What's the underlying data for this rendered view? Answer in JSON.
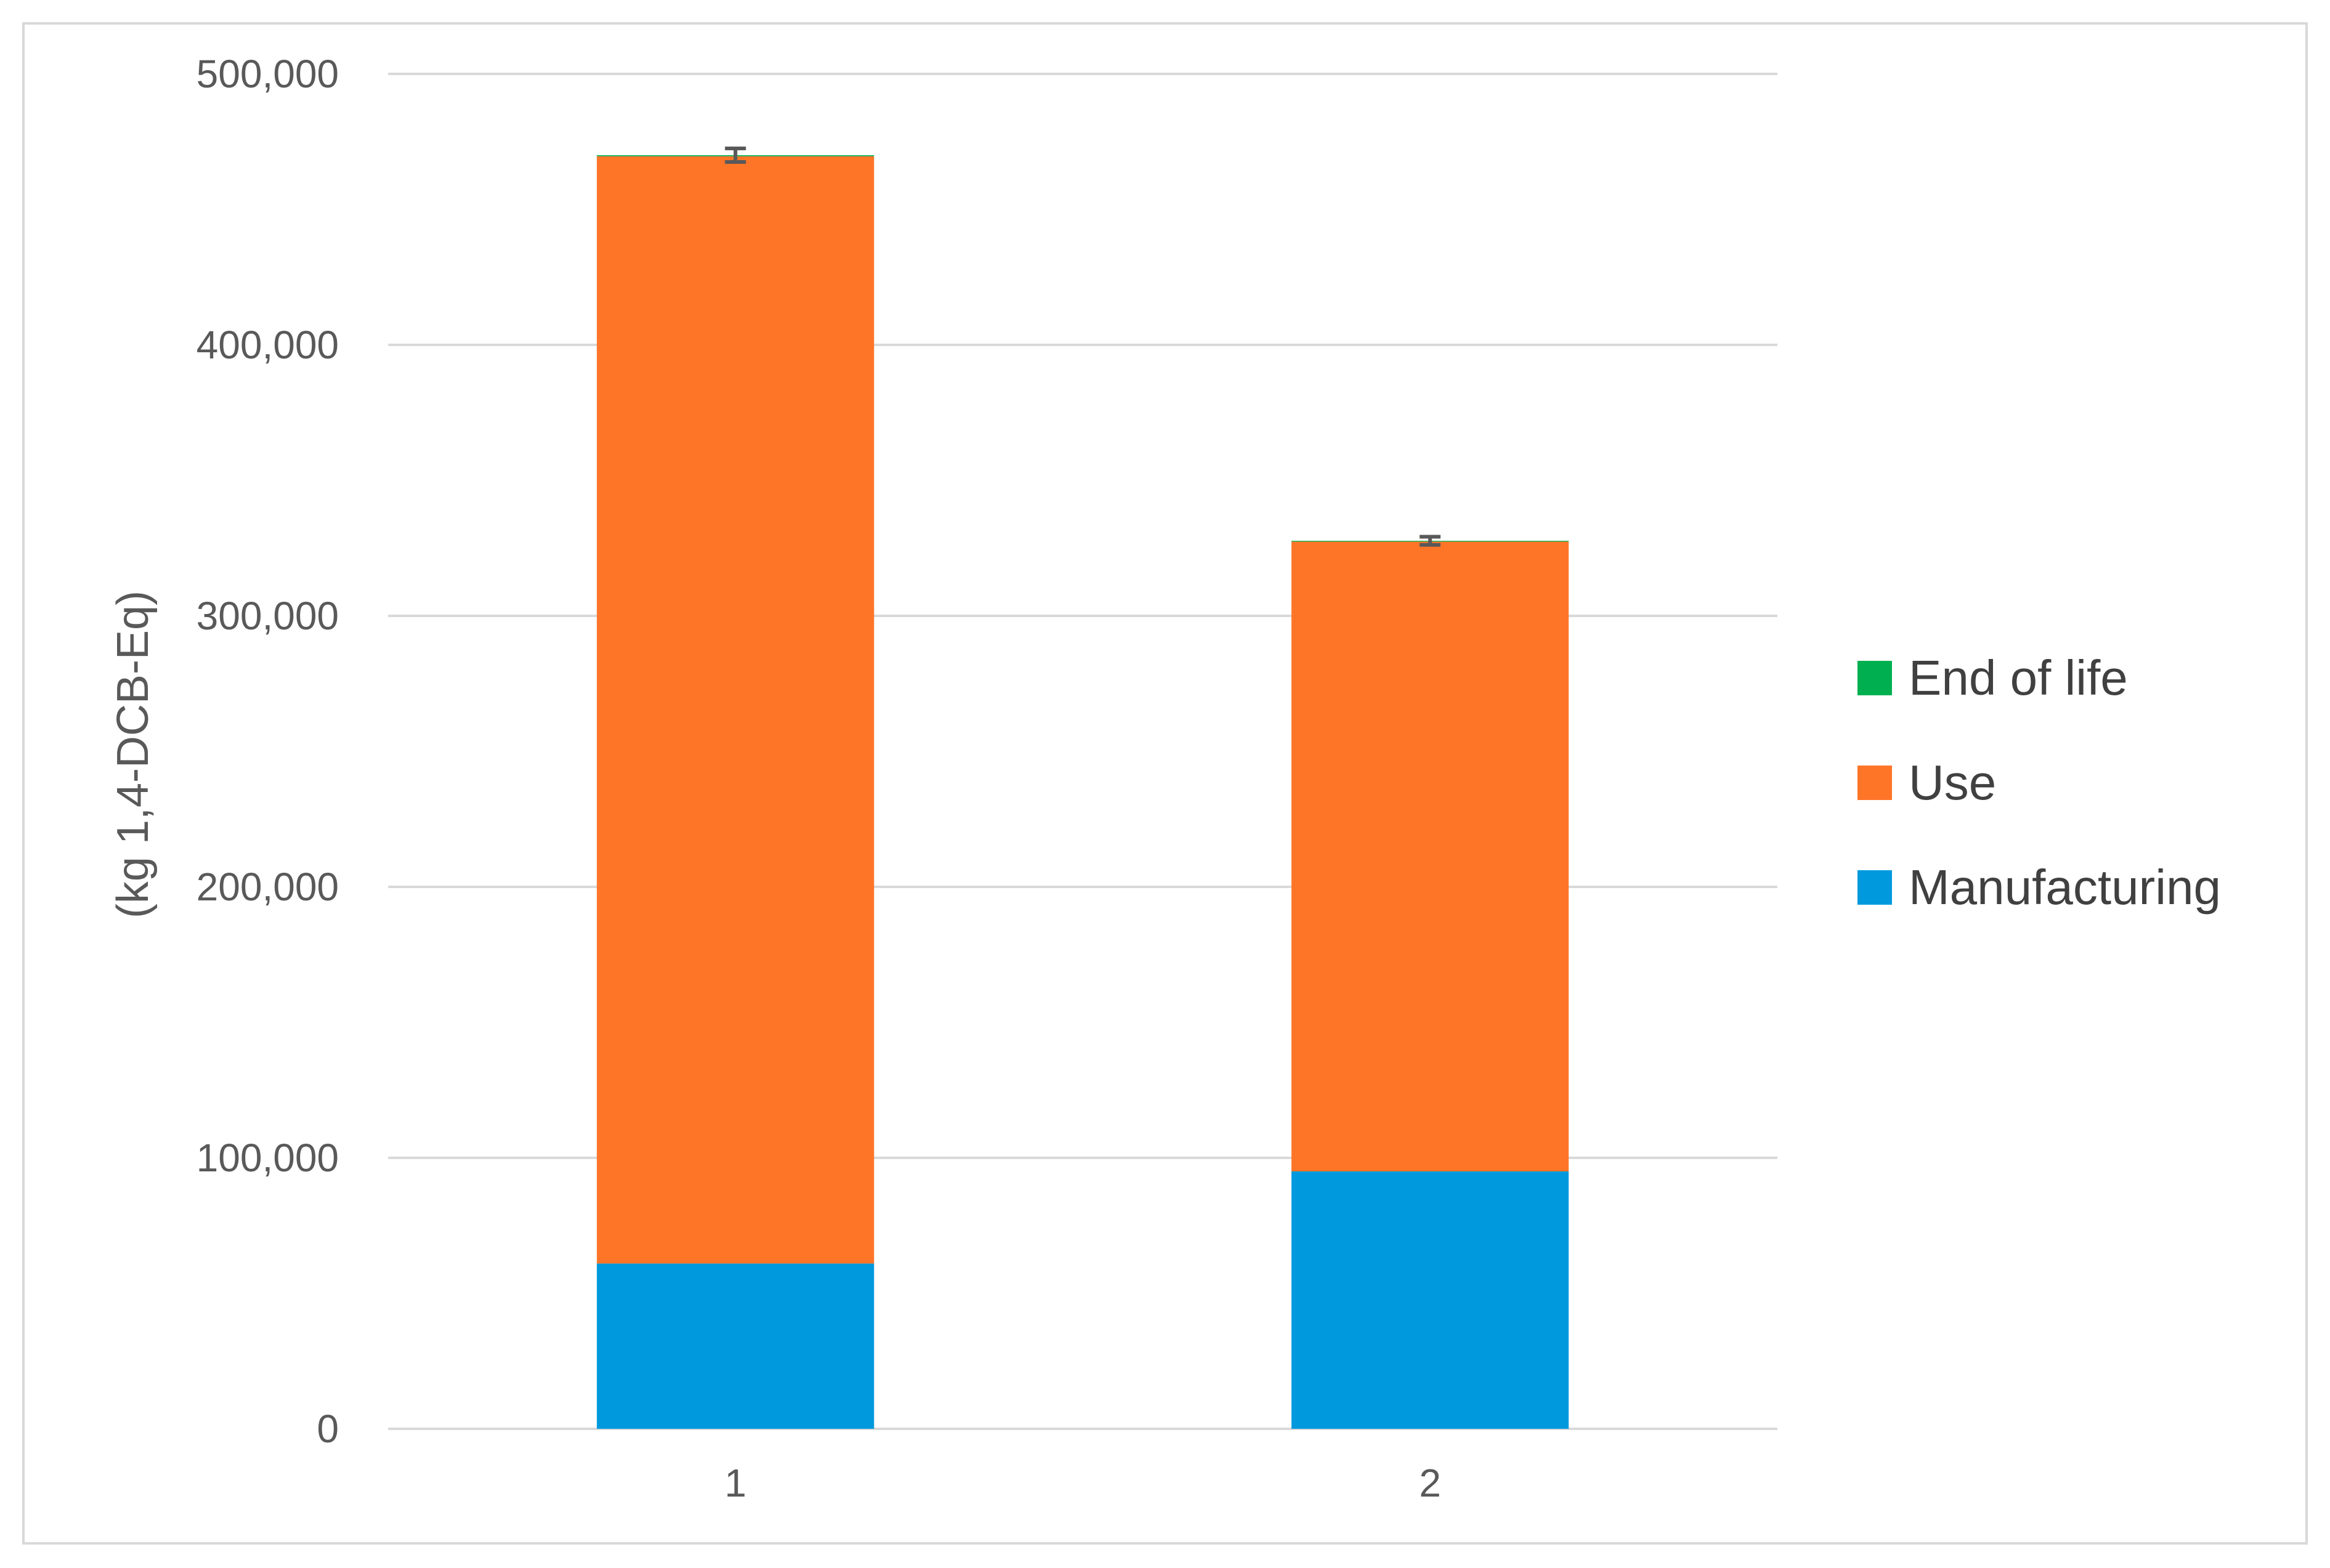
{
  "chart_data": {
    "type": "bar",
    "stacked": true,
    "categories": [
      "1",
      "2"
    ],
    "series": [
      {
        "name": "Manufacturing",
        "color": "#0099DD",
        "values": [
          61000,
          95000
        ]
      },
      {
        "name": "Use",
        "color": "#FF7528",
        "values": [
          408600,
          232400
        ]
      },
      {
        "name": "End of life",
        "color": "#00B050",
        "values": [
          400,
          300
        ]
      }
    ],
    "error_bars": [
      {
        "category": "1",
        "total": 470000,
        "plus_minus": 2500
      },
      {
        "category": "2",
        "total": 327700,
        "plus_minus": 1500
      }
    ],
    "ylabel": "(kg 1,4-DCB-Eq)",
    "xlabel": "",
    "ylim": [
      0,
      500000
    ],
    "yticks": [
      0,
      100000,
      200000,
      300000,
      400000,
      500000
    ],
    "ytick_labels": [
      "0",
      "100,000",
      "200,000",
      "300,000",
      "400,000",
      "500,000"
    ],
    "grid": true,
    "legend_position": "right",
    "legend_order": [
      "End of life",
      "Use",
      "Manufacturing"
    ],
    "error_bar_color": "#595959",
    "gridline_color": "#d9d9d9"
  }
}
